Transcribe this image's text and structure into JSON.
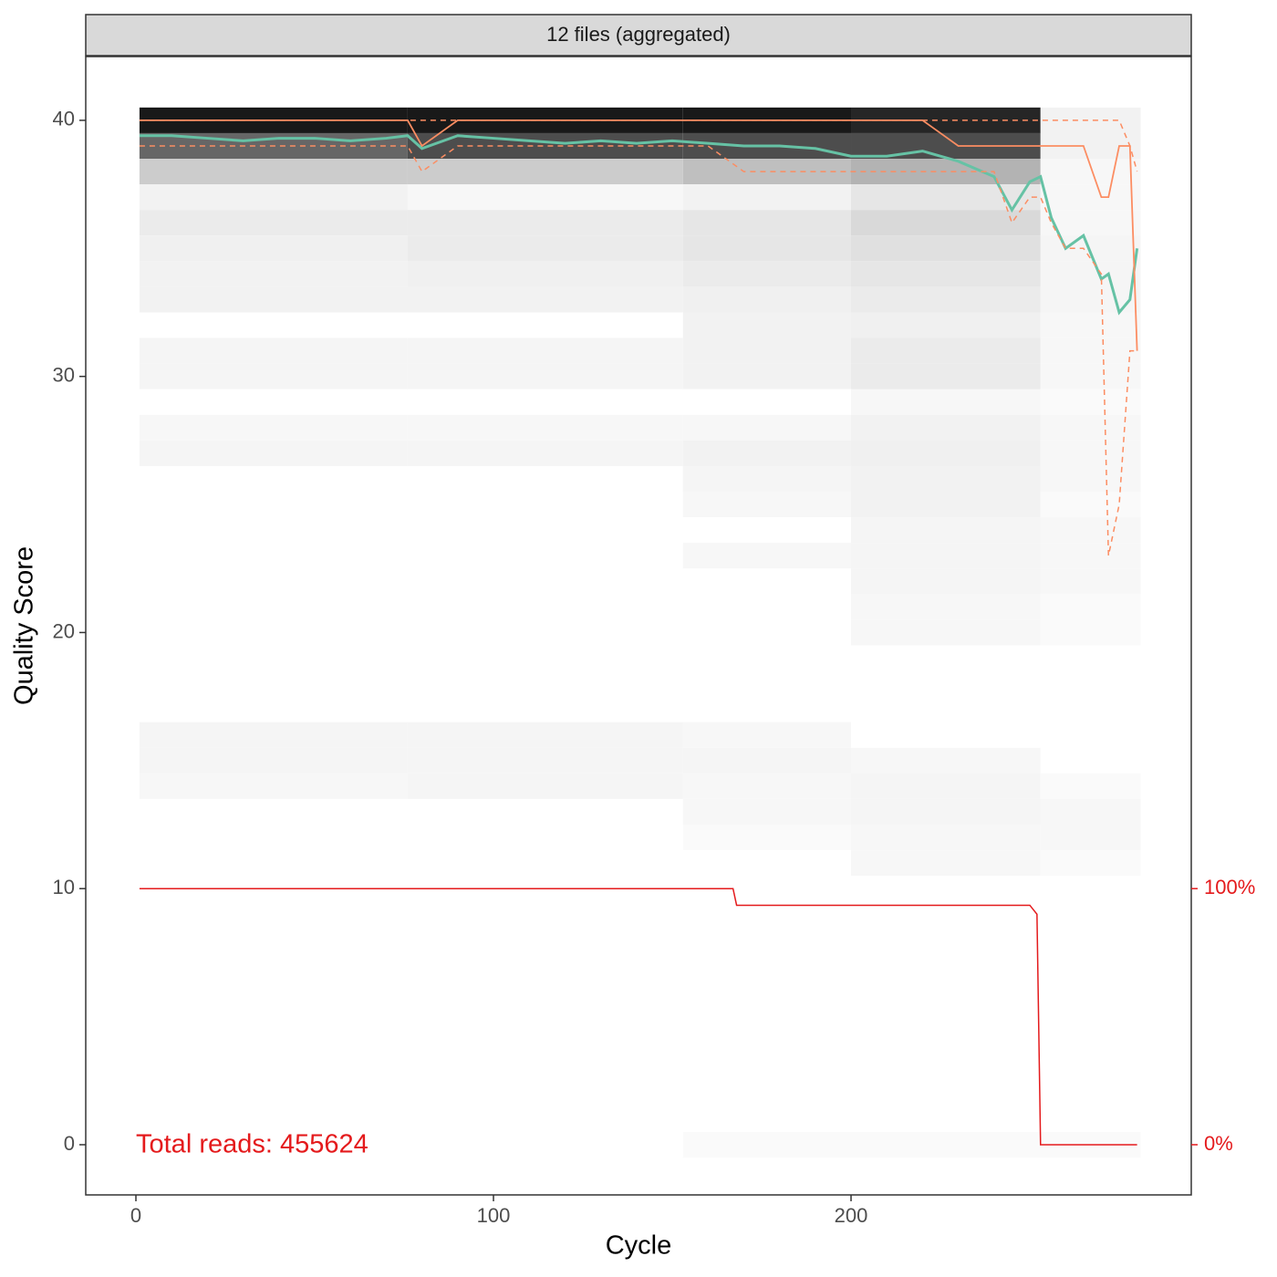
{
  "chart_data": {
    "type": "quality-profile",
    "facet_label": "12 files (aggregated)",
    "x_label": "Cycle",
    "y_label": "Quality Score",
    "annotation": "Total reads: 455624",
    "xlim": [
      -14.03,
      295.15
    ],
    "ylim": [
      -1.96,
      42.49
    ],
    "xticks": [
      0,
      100,
      200
    ],
    "yticks": [
      0,
      10,
      20,
      30,
      40
    ],
    "y2lim": [
      -19.6,
      424.9
    ],
    "y2ticks": [
      {
        "value": 0,
        "label": "0%"
      },
      {
        "value": 100,
        "label": "100%"
      }
    ],
    "y2_color": "#e41a1c",
    "heatmap": {
      "x_edges": [
        1,
        76,
        153,
        200,
        253,
        281
      ],
      "q": [
        40,
        39,
        38,
        37,
        36,
        35,
        34,
        33,
        32,
        31,
        30,
        29,
        28,
        27,
        26,
        25,
        24,
        23,
        22,
        21,
        20,
        16,
        15,
        14,
        13,
        12,
        11,
        0
      ],
      "density": [
        [
          0.9,
          0.9,
          0.9,
          0.85,
          0.05
        ],
        [
          0.6,
          0.7,
          0.7,
          0.7,
          0.05
        ],
        [
          0.2,
          0.2,
          0.25,
          0.3,
          0.03
        ],
        [
          0.05,
          0.03,
          0.05,
          0.1,
          0.03
        ],
        [
          0.08,
          0.08,
          0.1,
          0.15,
          0.03
        ],
        [
          0.06,
          0.08,
          0.1,
          0.12,
          0.04
        ],
        [
          0.05,
          0.06,
          0.08,
          0.1,
          0.04
        ],
        [
          0.05,
          0.05,
          0.06,
          0.08,
          0.04
        ],
        [
          0,
          0,
          0.05,
          0.06,
          0.03
        ],
        [
          0.04,
          0.04,
          0.05,
          0.08,
          0.03
        ],
        [
          0.04,
          0.04,
          0.05,
          0.08,
          0.03
        ],
        [
          0,
          0,
          0,
          0.03,
          0.02
        ],
        [
          0.03,
          0.03,
          0.03,
          0.05,
          0.03
        ],
        [
          0.04,
          0.04,
          0.05,
          0.06,
          0.03
        ],
        [
          0,
          0,
          0.04,
          0.05,
          0.03
        ],
        [
          0,
          0,
          0.03,
          0.05,
          0.02
        ],
        [
          0,
          0,
          0,
          0.04,
          0.03
        ],
        [
          0,
          0,
          0.03,
          0.04,
          0.03
        ],
        [
          0,
          0,
          0,
          0.04,
          0.03
        ],
        [
          0,
          0,
          0,
          0.03,
          0.02
        ],
        [
          0,
          0,
          0,
          0.03,
          0.02
        ],
        [
          0.04,
          0.04,
          0.03,
          0,
          0
        ],
        [
          0.04,
          0.04,
          0.04,
          0.03,
          0
        ],
        [
          0.03,
          0.04,
          0.03,
          0.04,
          0.02
        ],
        [
          0,
          0,
          0.03,
          0.04,
          0.03
        ],
        [
          0,
          0,
          0.02,
          0.03,
          0.03
        ],
        [
          0,
          0,
          0,
          0.03,
          0.02
        ],
        [
          0,
          0,
          0.02,
          0.02,
          0.02
        ]
      ]
    },
    "series": [
      {
        "color": "#66c2a5",
        "width": 3,
        "dash": false,
        "x": [
          1,
          10,
          20,
          30,
          40,
          50,
          60,
          70,
          76,
          80,
          90,
          100,
          110,
          120,
          130,
          140,
          150,
          160,
          170,
          180,
          190,
          200,
          210,
          220,
          230,
          240,
          245,
          250,
          253,
          256,
          260,
          265,
          270,
          272,
          275,
          278,
          280
        ],
        "values": [
          39.4,
          39.4,
          39.3,
          39.2,
          39.3,
          39.3,
          39.2,
          39.3,
          39.4,
          38.9,
          39.4,
          39.3,
          39.2,
          39.1,
          39.2,
          39.1,
          39.2,
          39.1,
          39.0,
          39.0,
          38.9,
          38.6,
          38.6,
          38.8,
          38.4,
          37.8,
          36.5,
          37.6,
          37.8,
          36.2,
          35.0,
          35.5,
          33.8,
          34.0,
          32.5,
          33.0,
          35.0
        ]
      },
      {
        "color": "#fc8d62",
        "width": 1.8,
        "dash": false,
        "x": [
          1,
          10,
          20,
          30,
          40,
          50,
          60,
          70,
          76,
          80,
          90,
          100,
          110,
          120,
          130,
          140,
          150,
          160,
          170,
          180,
          190,
          200,
          210,
          220,
          230,
          240,
          245,
          250,
          253,
          256,
          260,
          265,
          270,
          272,
          275,
          278,
          280
        ],
        "values": [
          40,
          40,
          40,
          40,
          40,
          40,
          40,
          40,
          40,
          39,
          40,
          40,
          40,
          40,
          40,
          40,
          40,
          40,
          40,
          40,
          40,
          40,
          40,
          40,
          39,
          39,
          39,
          39,
          39,
          39,
          39,
          39,
          37,
          37,
          39,
          39,
          31
        ]
      },
      {
        "color": "#fc8d62",
        "width": 1.5,
        "dash": true,
        "x": [
          1,
          10,
          20,
          30,
          40,
          50,
          60,
          70,
          76,
          80,
          90,
          100,
          110,
          120,
          130,
          140,
          150,
          160,
          170,
          180,
          190,
          200,
          210,
          220,
          230,
          240,
          245,
          250,
          253,
          256,
          260,
          265,
          270,
          272,
          275,
          278,
          280
        ],
        "values": [
          39,
          39,
          39,
          39,
          39,
          39,
          39,
          39,
          39,
          38,
          39,
          39,
          39,
          39,
          39,
          39,
          39,
          39,
          38,
          38,
          38,
          38,
          38,
          38,
          38,
          38,
          36,
          37,
          37,
          36,
          35,
          35,
          34,
          23,
          25,
          31,
          31
        ]
      },
      {
        "color": "#fc8d62",
        "width": 1.5,
        "dash": true,
        "x": [
          1,
          100,
          200,
          250,
          270,
          275,
          278,
          280
        ],
        "values": [
          40,
          40,
          40,
          40,
          40,
          40,
          39,
          38
        ]
      },
      {
        "color": "#e41a1c",
        "width": 1.5,
        "dash": false,
        "axis": "y2",
        "x": [
          1,
          167,
          168,
          250,
          252,
          253,
          280
        ],
        "values": [
          100,
          100,
          93.5,
          93.5,
          90,
          0,
          0
        ]
      }
    ]
  }
}
